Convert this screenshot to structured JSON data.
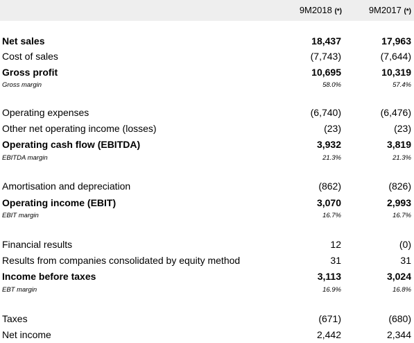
{
  "header": {
    "col1": "9M2018",
    "col2": "9M2017",
    "note_marker": "(*)"
  },
  "rows": [
    {
      "label": "Net sales",
      "v1": "18,437",
      "v2": "17,963"
    },
    {
      "label": "Cost of sales",
      "v1": "(7,743)",
      "v2": "(7,644)"
    },
    {
      "label": "Gross profit",
      "v1": "10,695",
      "v2": "10,319"
    },
    {
      "label": "Gross margin",
      "v1": "58.0%",
      "v2": "57.4%"
    },
    {
      "label": "Operating expenses",
      "v1": "(6,740)",
      "v2": "(6,476)"
    },
    {
      "label": "Other net operating income (losses)",
      "v1": "(23)",
      "v2": "(23)"
    },
    {
      "label": "Operating cash flow (EBITDA)",
      "v1": "3,932",
      "v2": "3,819"
    },
    {
      "label": "EBITDA margin",
      "v1": "21.3%",
      "v2": "21.3%"
    },
    {
      "label": "Amortisation and depreciation",
      "v1": "(862)",
      "v2": "(826)"
    },
    {
      "label": "Operating income (EBIT)",
      "v1": "3,070",
      "v2": "2,993"
    },
    {
      "label": "EBIT margin",
      "v1": "16.7%",
      "v2": "16.7%"
    },
    {
      "label": "Financial results",
      "v1": "12",
      "v2": "(0)"
    },
    {
      "label": "Results from companies consolidated by equity method",
      "v1": "31",
      "v2": "31"
    },
    {
      "label": "Income before taxes",
      "v1": "3,113",
      "v2": "3,024"
    },
    {
      "label": "EBT margin",
      "v1": "16.9%",
      "v2": "16.8%"
    },
    {
      "label": "Taxes",
      "v1": "(671)",
      "v2": "(680)"
    },
    {
      "label": "Net income",
      "v1": "2,442",
      "v2": "2,344"
    }
  ]
}
